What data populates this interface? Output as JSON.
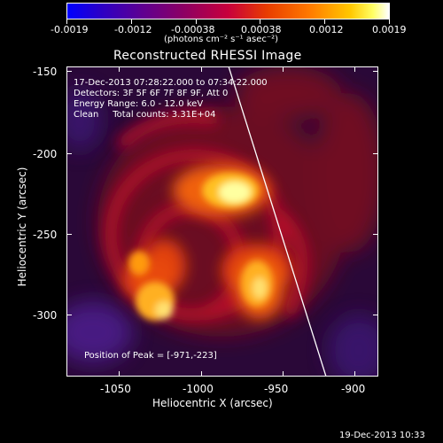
{
  "colorbar": {
    "ticks": [
      "-0.0019",
      "-0.0012",
      "-0.00038",
      "0.00038",
      "0.0012",
      "0.0019"
    ],
    "units_label": "(photons cm⁻² s⁻¹ asec⁻²)"
  },
  "plot": {
    "title": "Reconstructed RHESSI Image",
    "info_lines": [
      "17-Dec-2013 07:28:22.000 to 07:34:22.000",
      "Detectors: 3F 5F 6F 7F 8F 9F, Att 0",
      "Energy Range: 6.0 - 12.0 keV",
      "Clean     Total counts: 3.31E+04"
    ],
    "peak_label": "Position of Peak = [-971,-223]",
    "xlabel": "Heliocentric X (arcsec)",
    "ylabel": "Heliocentric Y (arcsec)",
    "xticks": [
      "-1050",
      "-1000",
      "-950",
      "-900"
    ],
    "yticks": [
      "-150",
      "-200",
      "-250",
      "-300"
    ]
  },
  "footer": {
    "timestamp": "19-Dec-2013 10:33"
  }
}
